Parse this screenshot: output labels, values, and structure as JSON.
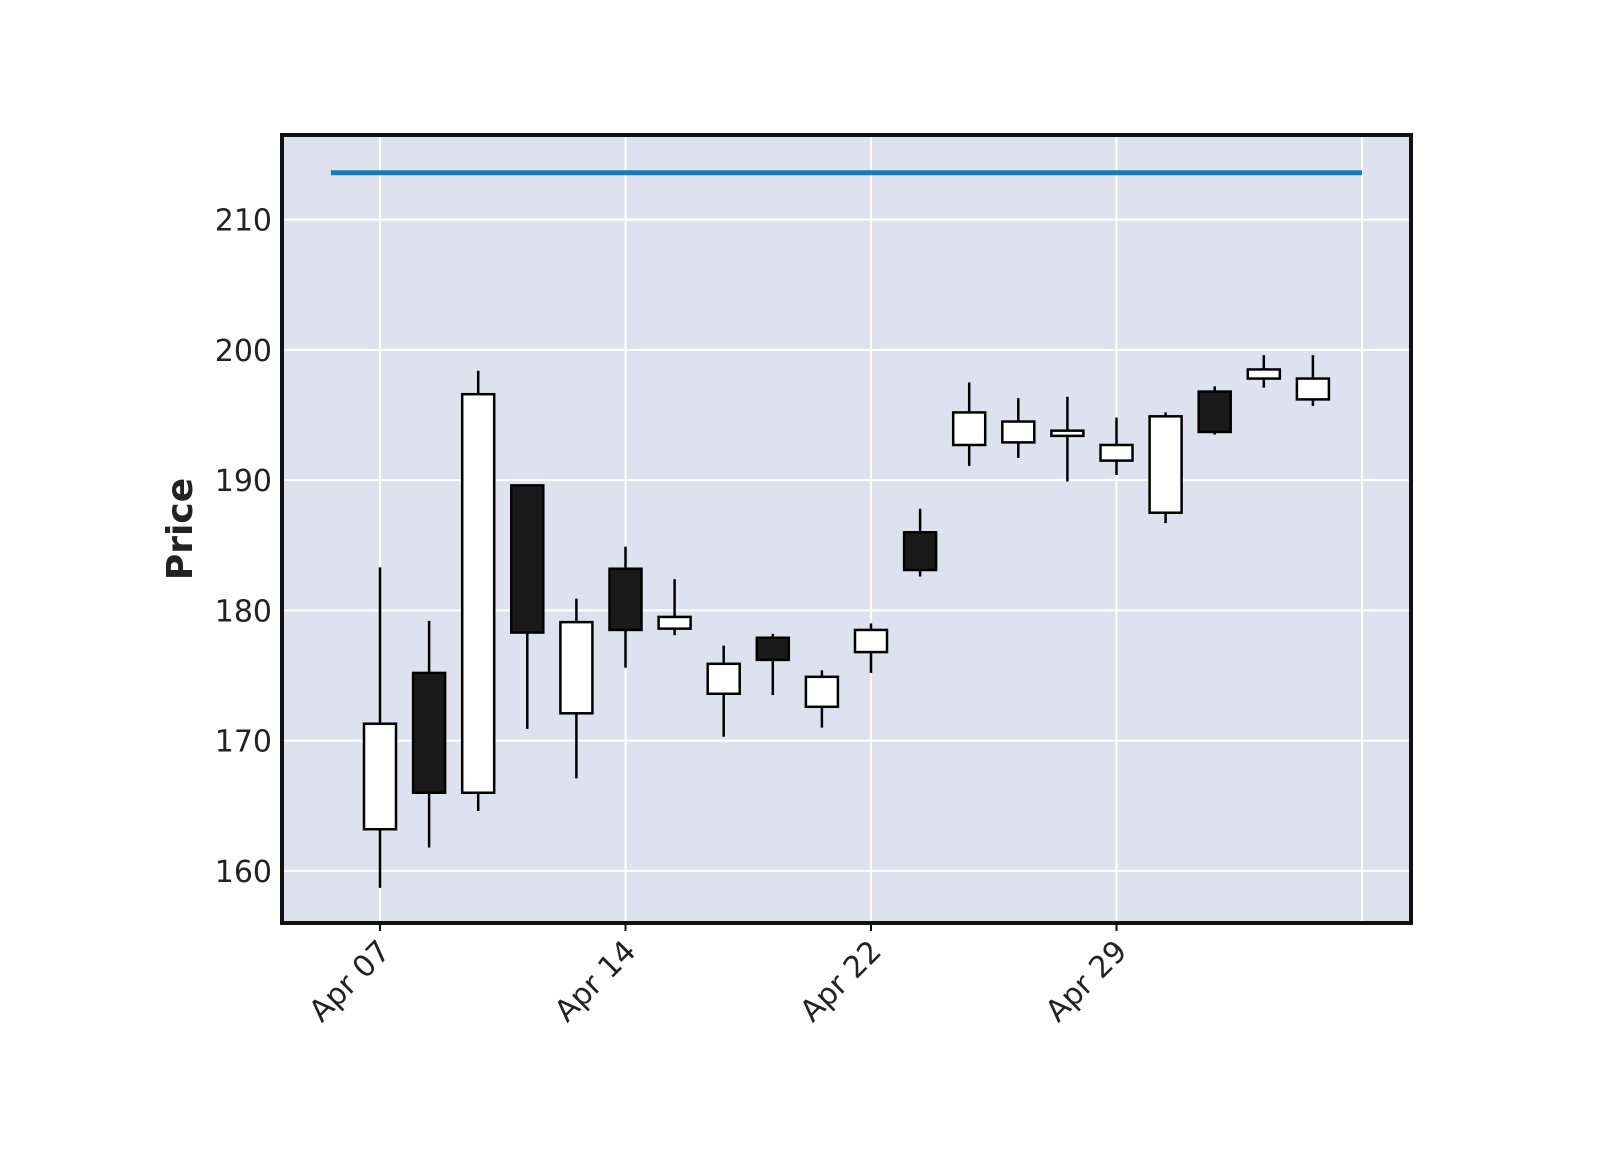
{
  "chart_data": {
    "type": "candlestick",
    "title": "",
    "xlabel": "",
    "ylabel": "Price",
    "ylim": [
      156,
      216.5
    ],
    "yticks": [
      160,
      170,
      180,
      190,
      200,
      210
    ],
    "xtick_labels": [
      "Apr 07",
      "Apr 14",
      "Apr 22",
      "Apr 29"
    ],
    "xtick_positions": [
      0,
      5,
      10,
      15
    ],
    "grid": true,
    "colors": {
      "background": "#dde2ee",
      "grid": "#ffffff",
      "up": "#ffffff",
      "down": "#1a1a1a",
      "edge": "#000000",
      "hline": "#1f77b4"
    },
    "hline": {
      "value": 213.6
    },
    "candles": [
      {
        "o": 163.2,
        "h": 183.3,
        "l": 158.7,
        "c": 171.3
      },
      {
        "o": 175.2,
        "h": 179.2,
        "l": 161.8,
        "c": 166.0
      },
      {
        "o": 166.0,
        "h": 198.4,
        "l": 164.6,
        "c": 196.6
      },
      {
        "o": 189.6,
        "h": 189.6,
        "l": 170.9,
        "c": 178.3
      },
      {
        "o": 172.1,
        "h": 180.9,
        "l": 167.1,
        "c": 179.1
      },
      {
        "o": 183.2,
        "h": 184.9,
        "l": 175.6,
        "c": 178.5
      },
      {
        "o": 178.6,
        "h": 182.4,
        "l": 178.1,
        "c": 179.5
      },
      {
        "o": 173.6,
        "h": 177.3,
        "l": 170.3,
        "c": 175.9
      },
      {
        "o": 177.9,
        "h": 178.2,
        "l": 173.5,
        "c": 176.2
      },
      {
        "o": 172.6,
        "h": 175.4,
        "l": 171.0,
        "c": 174.9
      },
      {
        "o": 176.8,
        "h": 179.0,
        "l": 175.2,
        "c": 178.5
      },
      {
        "o": 186.0,
        "h": 187.8,
        "l": 182.6,
        "c": 183.1
      },
      {
        "o": 192.7,
        "h": 197.5,
        "l": 191.1,
        "c": 195.2
      },
      {
        "o": 192.9,
        "h": 196.3,
        "l": 191.7,
        "c": 194.5
      },
      {
        "o": 193.4,
        "h": 196.4,
        "l": 189.9,
        "c": 193.8
      },
      {
        "o": 191.5,
        "h": 194.8,
        "l": 190.4,
        "c": 192.7
      },
      {
        "o": 187.5,
        "h": 195.2,
        "l": 186.7,
        "c": 194.9
      },
      {
        "o": 196.8,
        "h": 197.2,
        "l": 193.5,
        "c": 193.7
      },
      {
        "o": 197.8,
        "h": 199.6,
        "l": 197.1,
        "c": 198.5
      },
      {
        "o": 196.2,
        "h": 199.6,
        "l": 195.7,
        "c": 197.8
      }
    ]
  }
}
